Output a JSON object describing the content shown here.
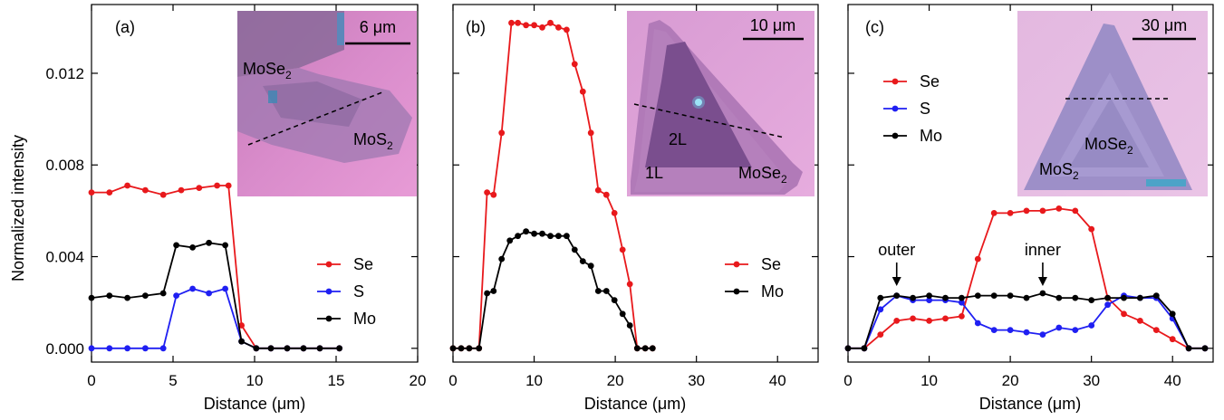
{
  "y_axis_label": "Normalized intensity",
  "chart_data": [
    {
      "type": "line",
      "panel_label": "(a)",
      "xlabel": "Distance (μm)",
      "ylabel": "Normalized intensity",
      "xlim": [
        0,
        20
      ],
      "ylim": [
        -0.0006,
        0.015
      ],
      "xticks": [
        0,
        5,
        10,
        15,
        20
      ],
      "yticks": [
        0.0,
        0.004,
        0.008,
        0.012
      ],
      "ytick_labels": [
        "0.000",
        "0.004",
        "0.008",
        "0.012"
      ],
      "legend_position": "center-right",
      "series": [
        {
          "name": "Se",
          "color": "#e8191c",
          "x": [
            0,
            1.1,
            2.2,
            3.3,
            4.4,
            5.5,
            6.6,
            7.7,
            8.4,
            9.2,
            10.1,
            11.0,
            12.0,
            13.0,
            14.0,
            15.2
          ],
          "y": [
            0.0068,
            0.0068,
            0.0071,
            0.0069,
            0.0067,
            0.0069,
            0.007,
            0.0071,
            0.0071,
            0.001,
            0.0,
            0.0,
            0.0,
            0.0,
            0.0,
            0.0
          ]
        },
        {
          "name": "S",
          "color": "#1f1ff2",
          "x": [
            0,
            1.1,
            2.2,
            3.3,
            4.4,
            5.2,
            6.2,
            7.2,
            8.2,
            9.2,
            10.1,
            11.0,
            12.0,
            13.0,
            14.0,
            15.2
          ],
          "y": [
            0.0,
            0.0,
            0.0,
            0.0,
            0.0,
            0.0023,
            0.0026,
            0.0024,
            0.0026,
            0.0003,
            0.0,
            0.0,
            0.0,
            0.0,
            0.0,
            0.0
          ]
        },
        {
          "name": "Mo",
          "color": "#000000",
          "x": [
            0,
            1.1,
            2.2,
            3.3,
            4.4,
            5.2,
            6.2,
            7.2,
            8.2,
            9.2,
            10.1,
            11.0,
            12.0,
            13.0,
            14.0,
            15.2
          ],
          "y": [
            0.0022,
            0.0023,
            0.0022,
            0.0023,
            0.0024,
            0.0045,
            0.0044,
            0.0046,
            0.0045,
            0.0003,
            0.0,
            0.0,
            0.0,
            0.0,
            0.0,
            0.0
          ]
        }
      ],
      "inset": {
        "scale_bar": "6 μm",
        "labels": [
          {
            "base": "MoSe",
            "sub": "2"
          },
          {
            "base": "MoS",
            "sub": "2"
          }
        ]
      }
    },
    {
      "type": "line",
      "panel_label": "(b)",
      "xlabel": "Distance (μm)",
      "xlim": [
        0,
        45
      ],
      "ylim": [
        -0.0006,
        0.015
      ],
      "xticks": [
        0,
        10,
        20,
        30,
        40
      ],
      "legend_position": "center-right",
      "series": [
        {
          "name": "Se",
          "color": "#e8191c",
          "x": [
            0,
            1,
            2,
            3.2,
            4.2,
            5.0,
            6.0,
            7.2,
            8.0,
            9.0,
            10.0,
            11.0,
            12.0,
            13.0,
            14.0,
            15.0,
            16.0,
            17.0,
            17.9,
            18.9,
            19.9,
            20.9,
            21.8,
            22.7,
            23.7,
            24.6
          ],
          "y": [
            0,
            0,
            0,
            0,
            0.0068,
            0.0067,
            0.0094,
            0.0142,
            0.0142,
            0.0141,
            0.0141,
            0.014,
            0.0142,
            0.014,
            0.0139,
            0.0124,
            0.0112,
            0.0094,
            0.0069,
            0.0067,
            0.0059,
            0.0043,
            0.0028,
            0,
            0,
            0
          ]
        },
        {
          "name": "Mo",
          "color": "#000000",
          "x": [
            0,
            1,
            2,
            3.2,
            4.2,
            5.0,
            6.0,
            7.0,
            8.0,
            9.0,
            10.0,
            11.0,
            12.0,
            13.0,
            14.0,
            15.0,
            16.0,
            17.0,
            17.9,
            18.9,
            19.9,
            20.9,
            21.8,
            22.7,
            23.7,
            24.6
          ],
          "y": [
            0,
            0,
            0,
            0,
            0.0024,
            0.0025,
            0.0039,
            0.0047,
            0.0049,
            0.0051,
            0.005,
            0.005,
            0.0049,
            0.0049,
            0.0049,
            0.0043,
            0.0038,
            0.0036,
            0.0025,
            0.0025,
            0.0021,
            0.0015,
            0.001,
            0,
            0,
            0
          ]
        }
      ],
      "inset": {
        "scale_bar": "10 μm",
        "labels": [
          {
            "base": "2L",
            "sub": ""
          },
          {
            "base": "1L",
            "sub": ""
          },
          {
            "base": "MoSe",
            "sub": "2"
          }
        ]
      }
    },
    {
      "type": "line",
      "panel_label": "(c)",
      "xlabel": "Distance (μm)",
      "xlim": [
        0,
        45
      ],
      "ylim": [
        -0.0006,
        0.015
      ],
      "xticks": [
        0,
        10,
        20,
        30,
        40
      ],
      "legend_position": "top-left",
      "series": [
        {
          "name": "Se",
          "color": "#e8191c",
          "x": [
            0,
            2,
            4,
            6,
            8,
            10,
            12,
            14,
            16,
            18,
            20,
            22,
            24,
            26,
            28,
            30,
            32,
            34,
            36,
            38,
            40,
            42,
            44
          ],
          "y": [
            0,
            0,
            0.0006,
            0.0012,
            0.0013,
            0.0012,
            0.0013,
            0.0014,
            0.0039,
            0.0059,
            0.0059,
            0.006,
            0.006,
            0.0061,
            0.006,
            0.0052,
            0.0022,
            0.0015,
            0.0012,
            0.0008,
            0.0004,
            0,
            0
          ]
        },
        {
          "name": "S",
          "color": "#1f1ff2",
          "x": [
            0,
            2,
            4,
            6,
            8,
            10,
            12,
            14,
            16,
            18,
            20,
            22,
            24,
            26,
            28,
            30,
            32,
            34,
            36,
            38,
            40,
            42,
            44
          ],
          "y": [
            0,
            0,
            0.0017,
            0.0023,
            0.0021,
            0.0021,
            0.0021,
            0.002,
            0.0011,
            0.0008,
            0.0008,
            0.0007,
            0.0006,
            0.0009,
            0.0008,
            0.001,
            0.0019,
            0.0023,
            0.0022,
            0.0022,
            0.0013,
            0,
            0
          ]
        },
        {
          "name": "Mo",
          "color": "#000000",
          "x": [
            0,
            2,
            4,
            6,
            8,
            10,
            12,
            14,
            16,
            18,
            20,
            22,
            24,
            26,
            28,
            30,
            32,
            34,
            36,
            38,
            40,
            42,
            44
          ],
          "y": [
            0,
            0,
            0.0022,
            0.0023,
            0.0022,
            0.0023,
            0.0022,
            0.0022,
            0.0023,
            0.0023,
            0.0023,
            0.0022,
            0.0024,
            0.0022,
            0.0022,
            0.0021,
            0.0022,
            0.0022,
            0.0022,
            0.0023,
            0.0015,
            0,
            0
          ]
        }
      ],
      "annotations": [
        {
          "text": "outer",
          "x": 6
        },
        {
          "text": "inner",
          "x": 24
        }
      ],
      "inset": {
        "scale_bar": "30 μm",
        "labels": [
          {
            "base": "MoSe",
            "sub": "2"
          },
          {
            "base": "MoS",
            "sub": "2"
          }
        ]
      }
    }
  ],
  "colors": {
    "se": "#e8191c",
    "s": "#1f1ff2",
    "mo": "#000000"
  }
}
